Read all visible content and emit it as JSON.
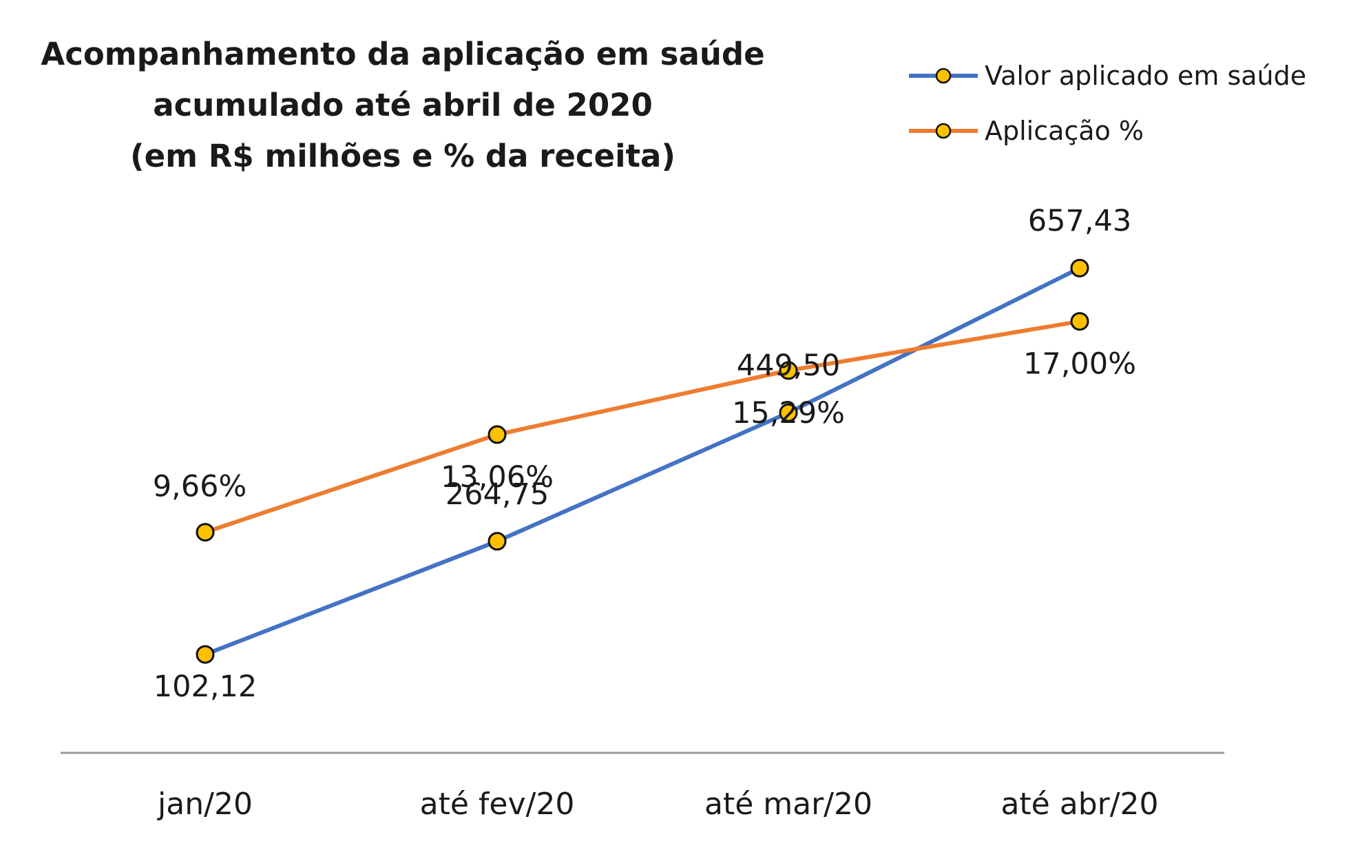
{
  "chart_data": {
    "type": "line",
    "title": [
      "Acompanhamento da aplicação em saúde",
      "acumulado até abril de 2020",
      "(em R$ milhões e % da receita)"
    ],
    "categories": [
      "jan/20",
      "até fev/20",
      "até mar/20",
      "até abr/20"
    ],
    "series": [
      {
        "name": "Valor aplicado em saúde",
        "values": [
          102.12,
          264.75,
          449.5,
          657.43
        ],
        "labels": [
          "102,12",
          "264,75",
          "449,50",
          "657,43"
        ],
        "color": "#4472c4"
      },
      {
        "name": "Aplicação %",
        "values": [
          9.66,
          13.06,
          15.29,
          17.0
        ],
        "labels": [
          "9,66%",
          "13,06%",
          "15,29%",
          "17,00%"
        ],
        "color": "#ed7d31"
      }
    ],
    "marker_color": "#ffc000",
    "legend": "top-right",
    "grid": false,
    "xlabel": "",
    "ylabel": ""
  }
}
